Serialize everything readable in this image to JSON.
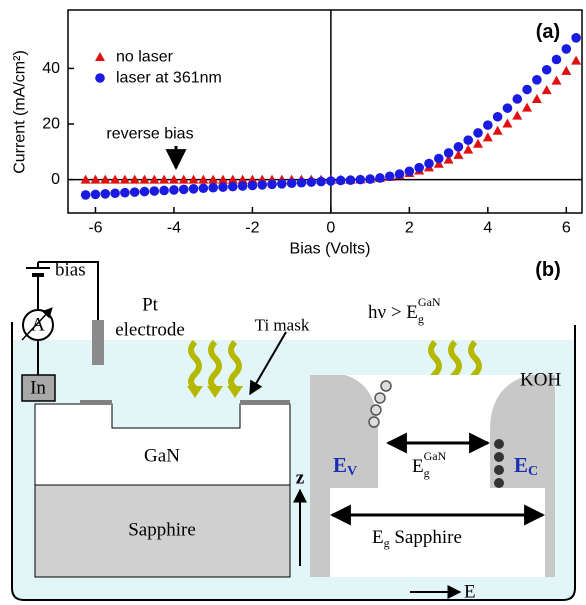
{
  "chart_data": {
    "type": "scatter",
    "title": "(a)",
    "xlabel": "Bias (Volts)",
    "ylabel": "Current (mA/cm²)",
    "annotation": "reverse bias",
    "x": [
      -6.25,
      -6,
      -5.75,
      -5.5,
      -5.25,
      -5,
      -4.75,
      -4.5,
      -4.25,
      -4,
      -3.75,
      -3.5,
      -3.25,
      -3,
      -2.75,
      -2.5,
      -2.25,
      -2,
      -1.75,
      -1.5,
      -1.25,
      -1,
      -0.75,
      -0.5,
      -0.25,
      0,
      0.25,
      0.5,
      0.75,
      1,
      1.25,
      1.5,
      1.75,
      2,
      2.25,
      2.5,
      2.75,
      3,
      3.25,
      3.5,
      3.75,
      4,
      4.25,
      4.5,
      4.75,
      5,
      5.25,
      5.5,
      5.75,
      6,
      6.25
    ],
    "series": [
      {
        "name": "no laser",
        "color": "#e01010",
        "marker": "triangle",
        "values": [
          0,
          0,
          0,
          0,
          0,
          0,
          0,
          0,
          0,
          0,
          0,
          0,
          0,
          0,
          0,
          0,
          0,
          0,
          0,
          0,
          0,
          0,
          0,
          0,
          0,
          0,
          0,
          0,
          0.1,
          0.3,
          0.6,
          1,
          1.6,
          2.4,
          3.3,
          4.4,
          5.7,
          7.2,
          8.9,
          10.8,
          12.9,
          15.2,
          17.6,
          20.2,
          23,
          25.9,
          29,
          32.2,
          35.6,
          39.1,
          42.8
        ]
      },
      {
        "name": "laser at 361nm",
        "color": "#1a1ae0",
        "marker": "circle",
        "values": [
          -5.5,
          -5.3,
          -5.1,
          -4.9,
          -4.7,
          -4.5,
          -4.3,
          -4.1,
          -3.9,
          -3.7,
          -3.5,
          -3.3,
          -3.1,
          -2.9,
          -2.7,
          -2.5,
          -2.3,
          -2.1,
          -1.9,
          -1.7,
          -1.5,
          -1.3,
          -1.1,
          -0.9,
          -0.7,
          -0.5,
          -0.3,
          -0.2,
          0,
          0.2,
          0.6,
          1.2,
          2,
          3,
          4.3,
          5.8,
          7.6,
          9.6,
          11.8,
          14.2,
          16.8,
          19.6,
          22.6,
          25.7,
          29,
          32.4,
          35.9,
          39.5,
          43.2,
          47,
          51
        ]
      }
    ],
    "xlim": [
      -6.7,
      6.4
    ],
    "ylim": [
      -12,
      61
    ],
    "xticks": [
      -6,
      -4,
      -2,
      0,
      2,
      4,
      6
    ],
    "yticks": [
      0,
      20,
      40
    ],
    "legend": "upper-left",
    "grid": false
  },
  "diagram": {
    "label": "(b)",
    "bias": "bias",
    "ammeter": "A",
    "electrode": [
      "Pt",
      "electrode"
    ],
    "ti_mask": "Ti mask",
    "photon": {
      "text": "hν > E",
      "sub": "g",
      "sup": "GaN"
    },
    "electrolyte": "KOH",
    "contact": "In",
    "gan": "GaN",
    "sapphire": "Sapphire",
    "z_axis": "z",
    "valence": {
      "text": "E",
      "sub": "V"
    },
    "conduction": {
      "text": "E",
      "sub": "C"
    },
    "gap_gan": {
      "text": "E",
      "sub": "g",
      "sup": "GaN"
    },
    "gap_sapphire": {
      "text": "E",
      "sub": "g",
      "rest": " Sapphire"
    },
    "field": "E"
  }
}
